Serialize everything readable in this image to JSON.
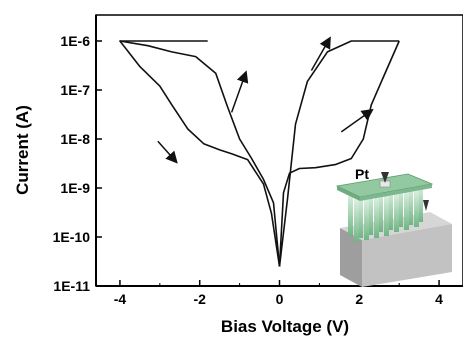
{
  "chart_data": {
    "type": "line",
    "title": "",
    "xlabel": "Bias Voltage (V)",
    "ylabel": "Current (A)",
    "xlim": [
      -4.6,
      4.6
    ],
    "ylim": [
      1e-11,
      1e-06
    ],
    "y_scale": "log",
    "x_ticks": [
      -4,
      -2,
      0,
      2,
      4
    ],
    "x_tick_labels": [
      "-4",
      "-2",
      "0",
      "2",
      "4"
    ],
    "y_ticks": [
      1e-11,
      1e-10,
      1e-09,
      1e-08,
      1e-07,
      1e-06
    ],
    "y_tick_labels": [
      "1E-11",
      "1E-10",
      "1E-9",
      "1E-8",
      "1E-7",
      "1E-6"
    ],
    "grid": false,
    "legend": "none",
    "line_color": "#111111",
    "series": [
      {
        "x": [
          -1.8,
          -2.2,
          -3.0,
          -4.0,
          -3.5,
          -3.0,
          -2.7,
          -2.3,
          -1.9,
          -1.5,
          -1.2,
          -0.8,
          -0.4,
          -0.2,
          0.0
        ],
        "y": [
          1e-06,
          1e-06,
          1e-06,
          1e-06,
          3e-07,
          1.2e-07,
          5e-08,
          1.6e-08,
          8e-09,
          6e-09,
          5e-09,
          3.8e-09,
          1.2e-09,
          3e-10,
          2.5e-11
        ]
      },
      {
        "x": [
          0.0,
          -0.15,
          -0.4,
          -0.7,
          -1.0,
          -1.3,
          -1.6,
          -2.1,
          -2.7,
          -3.3,
          -4.0
        ],
        "y": [
          2.5e-11,
          5e-10,
          1.5e-09,
          4e-09,
          1e-08,
          4.5e-08,
          2.2e-07,
          4.8e-07,
          6e-07,
          8e-07,
          1e-06
        ]
      },
      {
        "x": [
          0.0,
          0.1,
          0.25,
          0.5,
          0.9,
          1.4,
          1.8,
          2.1,
          2.3,
          2.6,
          3.0
        ],
        "y": [
          2.5e-11,
          8e-10,
          2e-09,
          2.5e-09,
          2.6e-09,
          3e-09,
          4e-09,
          1e-08,
          5e-08,
          1.8e-07,
          1e-06
        ]
      },
      {
        "x": [
          3.0,
          2.5,
          1.8,
          1.2,
          0.7,
          0.4,
          0.2,
          0.0
        ],
        "y": [
          1e-06,
          1e-06,
          1e-06,
          6e-07,
          1.5e-07,
          2e-08,
          6e-10,
          2.5e-11
        ]
      }
    ],
    "annotations": [
      {
        "type": "arrow",
        "from": [
          -1.2,
          3.5e-08
        ],
        "to": [
          -0.85,
          2.2e-07
        ]
      },
      {
        "type": "arrow",
        "from": [
          -3.05,
          9e-09
        ],
        "to": [
          -2.6,
          3.5e-09
        ]
      },
      {
        "type": "arrow",
        "from": [
          0.8,
          2.5e-07
        ],
        "to": [
          1.25,
          1.1e-06
        ]
      },
      {
        "type": "arrow",
        "from": [
          1.55,
          1.4e-08
        ],
        "to": [
          2.3,
          3.8e-08
        ]
      }
    ],
    "inset": {
      "label": "Pt",
      "colors": {
        "top_plate": "#93c9a1",
        "pillars": "#a8d8b4",
        "substrate": "#bdbdbd",
        "substrate_dark": "#9a9a9a"
      }
    }
  }
}
